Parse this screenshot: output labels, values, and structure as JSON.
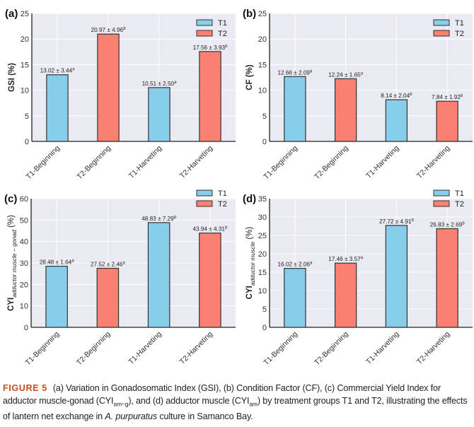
{
  "figure": {
    "label": "FIGURE 5",
    "caption_parts": {
      "p1": "(a) Variation in Gonadosomatic Index (GSI), (b) Condition Factor (CF), (c) Commercial Yield Index for adductor muscle-gonad (CYI",
      "sub1": "am−g",
      "p2": "), and (d) adductor muscle (CYI",
      "sub2": "am",
      "p3": ") by treatment groups T1 and T2, illustrating the effects of lantern net exchange in ",
      "species": "A. purpuratus",
      "p4": " culture in Samanco Bay."
    }
  },
  "colors": {
    "T1": "#87CEEB",
    "T2": "#FA8072",
    "plot_bg": "#EAEAF2",
    "grid": "#FFFFFF",
    "bar_edge": "#222222"
  },
  "chart_data": [
    {
      "type": "bar",
      "panel": "(a)",
      "ylabel": "GSI (%)",
      "ylabel_sub": "",
      "ylabel_suffix": "",
      "ylim": [
        0,
        25
      ],
      "yticks": [
        0,
        5,
        10,
        15,
        20,
        25
      ],
      "grid": true,
      "legend": [
        "T1",
        "T2"
      ],
      "legend_position": "top-right",
      "categories": [
        "T1-Beginning",
        "T2-Beginning",
        "T1-Harveting",
        "T2-Harveting"
      ],
      "groups": [
        "T1",
        "T2",
        "T1",
        "T2"
      ],
      "values": [
        13.02,
        20.97,
        10.51,
        17.56
      ],
      "sd": [
        3.44,
        4.96,
        2.5,
        3.93
      ],
      "letters": [
        "a",
        "b",
        "a",
        "b"
      ],
      "labels": [
        "13.02 ± 3.44",
        "20.97 ± 4.96",
        "10.51 ± 2.50",
        "17.56 ± 3.93"
      ]
    },
    {
      "type": "bar",
      "panel": "(b)",
      "ylabel": "CF (%)",
      "ylabel_sub": "",
      "ylabel_suffix": "",
      "ylim": [
        0,
        25
      ],
      "yticks": [
        0,
        5,
        10,
        15,
        20,
        25
      ],
      "grid": true,
      "legend": [
        "T1",
        "T2"
      ],
      "legend_position": "top-right",
      "categories": [
        "T1-Beginning",
        "T2-Beginning",
        "T1-Harveting",
        "T2-Harveting"
      ],
      "groups": [
        "T1",
        "T2",
        "T1",
        "T2"
      ],
      "values": [
        12.66,
        12.24,
        8.14,
        7.84
      ],
      "sd": [
        2.09,
        1.65,
        2.04,
        1.92
      ],
      "letters": [
        "a",
        "a",
        "b",
        "b"
      ],
      "labels": [
        "12.66 ± 2.09",
        "12.24 ± 1.65",
        "8.14 ± 2.04",
        "7.84 ± 1.92"
      ]
    },
    {
      "type": "bar",
      "panel": "(c)",
      "ylabel": "CYI",
      "ylabel_sub": "adductor muscle − gonad",
      "ylabel_suffix": " (%)",
      "ylim": [
        0,
        60
      ],
      "yticks": [
        0,
        10,
        20,
        30,
        40,
        50,
        60
      ],
      "grid": true,
      "legend": [
        "T1",
        "T2"
      ],
      "legend_position": "top-right",
      "categories": [
        "T1-Beginning",
        "T2-Beginning",
        "T1-Harveting",
        "T2-Harveting"
      ],
      "groups": [
        "T1",
        "T2",
        "T1",
        "T2"
      ],
      "values": [
        28.48,
        27.52,
        48.83,
        43.94
      ],
      "sd": [
        1.64,
        2.46,
        7.29,
        4.31
      ],
      "letters": [
        "a",
        "a",
        "b",
        "b"
      ],
      "labels": [
        "28.48 ± 1.64",
        "27.52 ± 2.46",
        "48.83 ± 7.29",
        "43.94 ± 4.31"
      ]
    },
    {
      "type": "bar",
      "panel": "(d)",
      "ylabel": "CYI",
      "ylabel_sub": "adductor muscle",
      "ylabel_suffix": " (%)",
      "ylim": [
        0,
        35
      ],
      "yticks": [
        0,
        5,
        10,
        15,
        20,
        25,
        30,
        35
      ],
      "grid": true,
      "legend": [
        "T1",
        "T2"
      ],
      "legend_position": "top-right",
      "categories": [
        "T1-Beginning",
        "T2-Beginning",
        "T1-Harveting",
        "T2-Harveting"
      ],
      "groups": [
        "T1",
        "T2",
        "T1",
        "T2"
      ],
      "values": [
        16.02,
        17.46,
        27.72,
        26.83
      ],
      "sd": [
        2.06,
        3.57,
        4.91,
        2.69
      ],
      "letters": [
        "a",
        "a",
        "b",
        "b"
      ],
      "labels": [
        "16.02 ± 2.06",
        "17.46 ± 3.57",
        "27.72 ± 4.91",
        "26.83 ± 2.69"
      ]
    }
  ]
}
